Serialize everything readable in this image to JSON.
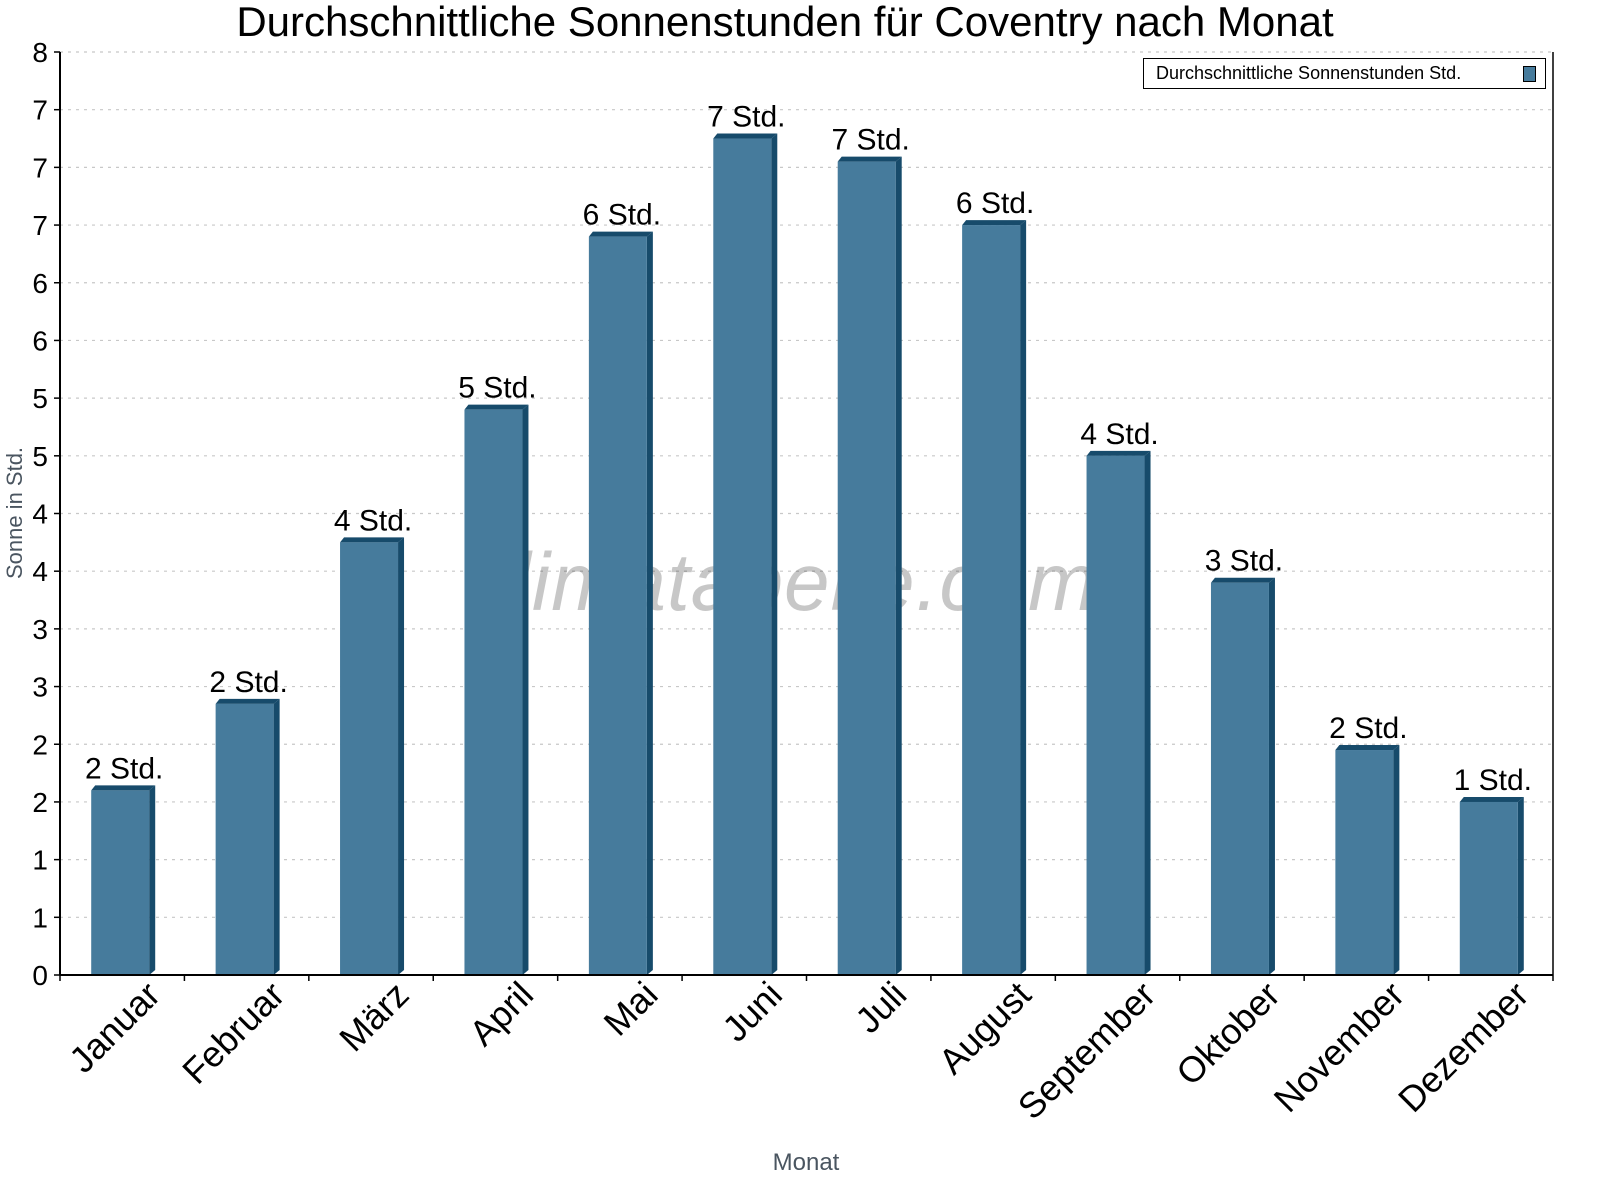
{
  "chart_data": {
    "type": "bar",
    "title": "Durchschnittliche Sonnenstunden für Coventry nach Monat",
    "xlabel": "Monat",
    "ylabel": "Sonne in Std.",
    "categories": [
      "Januar",
      "Februar",
      "März",
      "April",
      "Mai",
      "Juni",
      "Juli",
      "August",
      "September",
      "Oktober",
      "November",
      "Dezember"
    ],
    "series": [
      {
        "name": "Durchschnittliche Sonnenstunden Std.",
        "values": [
          1.6,
          2.35,
          3.75,
          4.9,
          6.4,
          7.25,
          7.05,
          6.5,
          4.5,
          3.4,
          1.95,
          1.5
        ],
        "data_labels": [
          "2 Std.",
          "2 Std.",
          "4 Std.",
          "5 Std.",
          "6 Std.",
          "7 Std.",
          "7 Std.",
          "6 Std.",
          "4 Std.",
          "3 Std.",
          "2 Std.",
          "1 Std."
        ]
      }
    ],
    "ylim": [
      0,
      8
    ],
    "ytick_values": [
      0,
      0.5,
      1,
      1.5,
      2,
      2.5,
      3,
      3.5,
      4,
      4.5,
      5,
      5.5,
      6,
      6.5,
      7,
      7.5,
      8
    ],
    "ytick_labels": [
      "0",
      "1",
      "1",
      "2",
      "2",
      "3",
      "3",
      "4",
      "4",
      "5",
      "5",
      "6",
      "6",
      "7",
      "7",
      "7",
      "8"
    ],
    "grid": true,
    "legend_position": "top-right",
    "watermark": "klimatabelle.com",
    "colors": {
      "bar_front": "#467b9c",
      "bar_side": "#174b6b",
      "grid": "#c8c8c8",
      "axis_title": "#4a5560"
    }
  }
}
